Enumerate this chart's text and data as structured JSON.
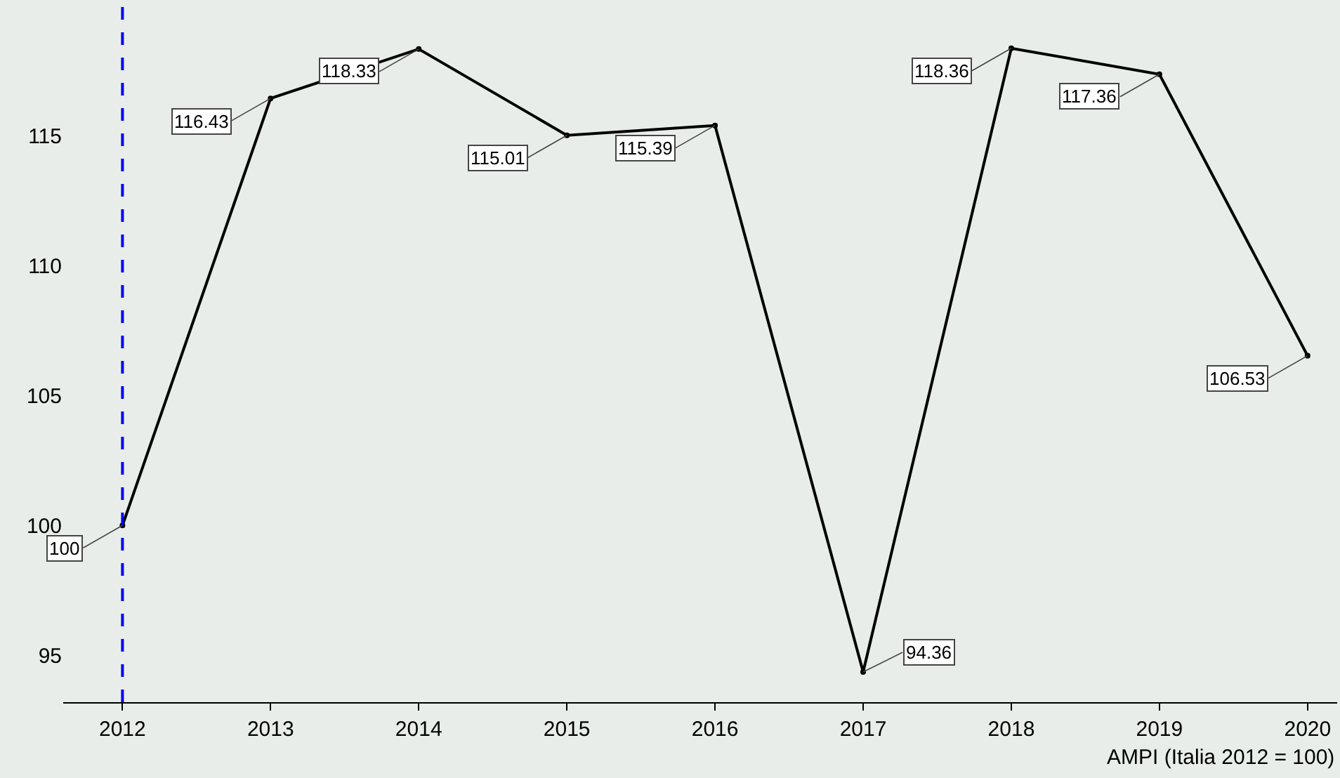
{
  "chart_data": {
    "type": "line",
    "x": [
      2012,
      2013,
      2014,
      2015,
      2016,
      2017,
      2018,
      2019,
      2020
    ],
    "series": [
      {
        "color": "#000000",
        "values": [
          100,
          116.43,
          118.33,
          115.01,
          115.39,
          94.36,
          118.36,
          117.36,
          106.53
        ]
      }
    ],
    "xlim": [
      2011.6,
      2020.2
    ],
    "xticks": [
      2012,
      2013,
      2014,
      2015,
      2016,
      2017,
      2018,
      2019,
      2020
    ],
    "ylim": [
      93.2,
      120
    ],
    "yticks": [
      95,
      100,
      105,
      110,
      115
    ],
    "xlabel": "AMPI (Italia 2012 = 100)",
    "data_labels": true,
    "grid": false,
    "marker": "circle",
    "line_style": "solid",
    "ref_lines": [
      {
        "axis": "x",
        "value": 2012,
        "color": "#0000ff",
        "line_style": "dashed"
      }
    ]
  }
}
